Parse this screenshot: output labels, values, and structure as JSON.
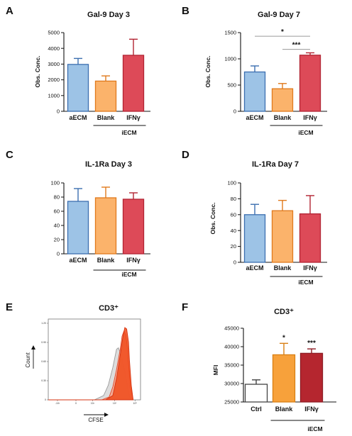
{
  "chart_data": [
    {
      "panel": "A",
      "type": "bar",
      "title": "Gal-9 Day 3",
      "ylabel": "Obs. Conc.",
      "ylim": [
        0,
        5000
      ],
      "yticks": [
        "0",
        "1000",
        "2000",
        "3000",
        "4000",
        "5000"
      ],
      "categories": [
        "aECM",
        "Blank",
        "IFNγ"
      ],
      "values": [
        2980,
        1920,
        3560
      ],
      "errors": [
        380,
        330,
        1020
      ],
      "group_label": "iECM",
      "colors": [
        "#9dc3e6",
        "#fbb36b",
        "#dd4a58"
      ],
      "edge_colors": [
        "#3c6fb0",
        "#e07a1d",
        "#b22433"
      ],
      "significance": []
    },
    {
      "panel": "B",
      "type": "bar",
      "title": "Gal-9 Day 7",
      "ylabel": "Obs. Conc.",
      "ylim": [
        0,
        1500
      ],
      "yticks": [
        "0",
        "500",
        "1000",
        "1500"
      ],
      "categories": [
        "aECM",
        "Blank",
        "IFNγ"
      ],
      "values": [
        750,
        430,
        1070
      ],
      "errors": [
        115,
        100,
        45
      ],
      "group_label": "iECM",
      "colors": [
        "#9dc3e6",
        "#fbb36b",
        "#dd4a58"
      ],
      "edge_colors": [
        "#3c6fb0",
        "#e07a1d",
        "#b22433"
      ],
      "significance": [
        {
          "from": 0,
          "to": 2,
          "label": "*",
          "y": 1430
        },
        {
          "from": 1,
          "to": 2,
          "label": "***",
          "y": 1180
        }
      ]
    },
    {
      "panel": "C",
      "type": "bar",
      "title": "IL-1Ra Day 3",
      "ylabel": "Obs. Conc.",
      "ylim": [
        0,
        100
      ],
      "yticks": [
        "0",
        "20",
        "40",
        "60",
        "80",
        "100"
      ],
      "categories": [
        "aECM",
        "Blank",
        "IFNγ"
      ],
      "values": [
        74,
        79,
        77
      ],
      "errors": [
        18,
        15,
        9
      ],
      "group_label": "iECM",
      "colors": [
        "#9dc3e6",
        "#fbb36b",
        "#dd4a58"
      ],
      "edge_colors": [
        "#3c6fb0",
        "#e07a1d",
        "#b22433"
      ],
      "significance": []
    },
    {
      "panel": "D",
      "type": "bar",
      "title": "IL-1Ra Day 7",
      "ylabel": "Obs. Conc.",
      "ylim": [
        0,
        100
      ],
      "yticks": [
        "0",
        "20",
        "40",
        "60",
        "80",
        "100"
      ],
      "categories": [
        "aECM",
        "Blank",
        "IFNγ"
      ],
      "values": [
        60,
        65,
        61
      ],
      "errors": [
        13,
        13,
        23
      ],
      "group_label": "iECM",
      "colors": [
        "#9dc3e6",
        "#fbb36b",
        "#dd4a58"
      ],
      "edge_colors": [
        "#3c6fb0",
        "#e07a1d",
        "#b22433"
      ],
      "significance": []
    },
    {
      "panel": "E",
      "type": "area",
      "title": "CD3⁺",
      "xlabel": "CFSE",
      "ylabel": "Count",
      "yticks": [
        "0",
        "0.30",
        "0.60",
        "0.90",
        "1.20"
      ],
      "xticks": [
        "-10³",
        "0",
        "10³",
        "10⁴",
        "10⁵"
      ],
      "series": [
        {
          "color": "#d9d9d9",
          "edge": "#9a9a9a",
          "x": [
            0.0,
            0.5,
            0.6,
            0.65,
            0.7,
            0.74,
            0.76,
            0.79,
            0.82,
            0.86,
            0.88,
            0.9
          ],
          "values": [
            0.0,
            0.0,
            0.06,
            0.2,
            0.45,
            0.7,
            0.72,
            0.62,
            0.45,
            0.18,
            0.05,
            0.0
          ]
        },
        {
          "color": "#f4a58e",
          "edge": "#e2492a",
          "x": [
            0.0,
            0.58,
            0.66,
            0.7,
            0.74,
            0.78,
            0.8,
            0.82,
            0.84,
            0.86,
            0.87,
            0.89,
            0.92
          ],
          "values": [
            0.0,
            0.0,
            0.04,
            0.18,
            0.42,
            0.7,
            0.88,
            0.95,
            0.9,
            0.7,
            0.5,
            0.18,
            0.0
          ]
        },
        {
          "color": "#f04a1a",
          "edge": "#d63310",
          "x": [
            0.0,
            0.62,
            0.7,
            0.74,
            0.78,
            0.81,
            0.83,
            0.85,
            0.87,
            0.88,
            0.9,
            0.92
          ],
          "values": [
            0.0,
            0.0,
            0.06,
            0.3,
            0.62,
            0.88,
            1.0,
            0.98,
            0.8,
            0.55,
            0.2,
            0.0
          ]
        }
      ]
    },
    {
      "panel": "F",
      "type": "bar",
      "title": "CD3⁺",
      "ylabel": "MFI",
      "ylim": [
        25000,
        45000
      ],
      "yticks": [
        "25000",
        "30000",
        "35000",
        "40000",
        "45000"
      ],
      "categories": [
        "Ctrl",
        "Blank",
        "IFNγ"
      ],
      "values": [
        29800,
        37800,
        38200
      ],
      "errors": [
        1200,
        3100,
        1200
      ],
      "group_label": "iECM",
      "group_span": [
        1,
        2
      ],
      "colors": [
        "#ffffff",
        "#f7a13b",
        "#b5262f"
      ],
      "edge_colors": [
        "#444444",
        "#d97f14",
        "#8e1c24"
      ],
      "significance": [],
      "bar_stars": [
        "",
        "*",
        "***"
      ]
    }
  ]
}
